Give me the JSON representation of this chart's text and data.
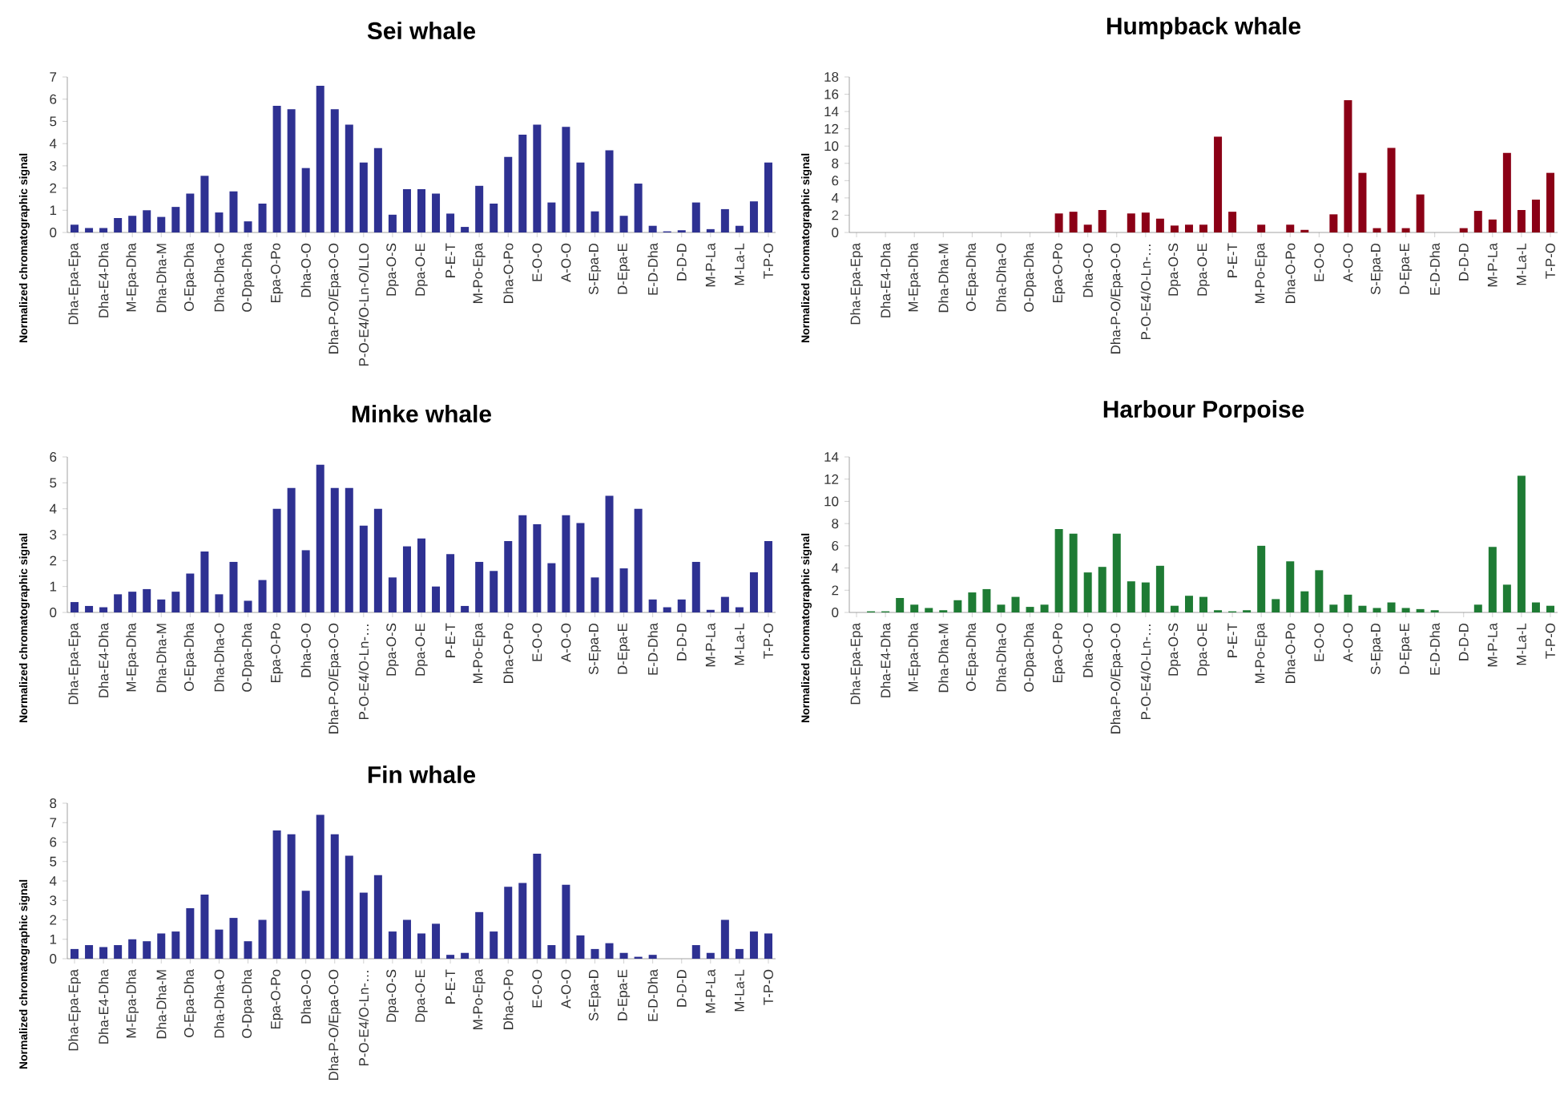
{
  "chart_data": [
    {
      "type": "bar",
      "title": "Sei whale",
      "ylabel": "Normalized chromatographic signal",
      "color": "#2e3192",
      "ylim": [
        0,
        7
      ],
      "yticks": [
        0,
        1,
        2,
        3,
        4,
        5,
        6,
        7
      ],
      "categories": [
        "Dha-Epa-Epa",
        null,
        "Dha-E4-Dha",
        null,
        "M-Epa-Dha",
        null,
        "Dha-Dha-M",
        null,
        "O-Epa-Dha",
        null,
        "Dha-Dha-O",
        null,
        "O-Dpa-Dha",
        null,
        "Epa-O-Po",
        null,
        "Dha-O-O",
        null,
        "Dha-P-O/Epa-O-O",
        null,
        "P-O-E4/O-Ln-O/LLO",
        null,
        "Dpa-O-S",
        null,
        "Dpa-O-E",
        null,
        "P-E-T",
        null,
        "M-Po-Epa",
        null,
        "Dha-O-Po",
        null,
        "E-O-O",
        null,
        "A-O-O",
        null,
        "S-Epa-D",
        null,
        "D-Epa-E",
        null,
        "E-D-Dha",
        null,
        "D-D-D",
        null,
        "M-P-La",
        null,
        "M-La-L",
        null,
        "T-P-O"
      ],
      "values": [
        0.35,
        0.2,
        0.2,
        0.65,
        0.75,
        1.0,
        0.7,
        1.15,
        1.75,
        2.55,
        0.9,
        1.85,
        0.5,
        1.3,
        5.7,
        5.55,
        2.9,
        6.6,
        5.55,
        4.85,
        3.15,
        3.8,
        0.8,
        1.95,
        1.95,
        1.75,
        0.85,
        0.25,
        2.1,
        1.3,
        3.4,
        4.4,
        4.85,
        1.35,
        4.75,
        3.15,
        0.95,
        3.7,
        0.75,
        2.2,
        0.3,
        0.05,
        0.1,
        1.35,
        0.15,
        1.05,
        0.3,
        1.4,
        3.15
      ]
    },
    {
      "type": "bar",
      "title": "Humpback whale",
      "ylabel": "Normalized chromatographic signal",
      "color": "#8b0016",
      "ylim": [
        0,
        18
      ],
      "yticks": [
        0,
        2,
        4,
        6,
        8,
        10,
        12,
        14,
        16,
        18
      ],
      "categories": [
        "Dha-Epa-Epa",
        null,
        "Dha-E4-Dha",
        null,
        "M-Epa-Dha",
        null,
        "Dha-Dha-M",
        null,
        "O-Epa-Dha",
        null,
        "Dha-Dha-O",
        null,
        "O-Dpa-Dha",
        null,
        "Epa-O-Po",
        null,
        "Dha-O-O",
        null,
        "Dha-P-O/Epa-O-O",
        null,
        "P-O-E4/O-Ln-…",
        null,
        "Dpa-O-S",
        null,
        "Dpa-O-E",
        null,
        "P-E-T",
        null,
        "M-Po-Epa",
        null,
        "Dha-O-Po",
        null,
        "E-O-O",
        null,
        "A-O-O",
        null,
        "S-Epa-D",
        null,
        "D-Epa-E",
        null,
        "E-D-Dha",
        null,
        "D-D-D",
        null,
        "M-P-La",
        null,
        "M-La-L",
        null,
        "T-P-O"
      ],
      "values": [
        0,
        0,
        0,
        0,
        0,
        0,
        0,
        0,
        0,
        0,
        0,
        0,
        0,
        0,
        2.2,
        2.4,
        0.9,
        2.6,
        0,
        2.2,
        2.3,
        1.6,
        0.8,
        0.9,
        0.9,
        11.1,
        2.4,
        0,
        0.9,
        0,
        0.9,
        0.3,
        0,
        2.1,
        15.3,
        6.9,
        0.5,
        9.8,
        0.5,
        4.4,
        0,
        0,
        0.5,
        2.5,
        1.5,
        9.2,
        2.6,
        3.8,
        6.9
      ]
    },
    {
      "type": "bar",
      "title": "Minke whale",
      "ylabel": "Normalized chromatographic signal",
      "color": "#2e3192",
      "ylim": [
        0,
        6
      ],
      "yticks": [
        0,
        1,
        2,
        3,
        4,
        5,
        6
      ],
      "categories": [
        "Dha-Epa-Epa",
        null,
        "Dha-E4-Dha",
        null,
        "M-Epa-Dha",
        null,
        "Dha-Dha-M",
        null,
        "O-Epa-Dha",
        null,
        "Dha-Dha-O",
        null,
        "O-Dpa-Dha",
        null,
        "Epa-O-Po",
        null,
        "Dha-O-O",
        null,
        "Dha-P-O/Epa-O-O",
        null,
        "P-O-E4/O-Ln-…",
        null,
        "Dpa-O-S",
        null,
        "Dpa-O-E",
        null,
        "P-E-T",
        null,
        "M-Po-Epa",
        null,
        "Dha-O-Po",
        null,
        "E-O-O",
        null,
        "A-O-O",
        null,
        "S-Epa-D",
        null,
        "D-Epa-E",
        null,
        "E-D-Dha",
        null,
        "D-D-D",
        null,
        "M-P-La",
        null,
        "M-La-L",
        null,
        "T-P-O"
      ],
      "values": [
        0.4,
        0.25,
        0.2,
        0.7,
        0.8,
        0.9,
        0.5,
        0.8,
        1.5,
        2.35,
        0.7,
        1.95,
        0.45,
        1.25,
        4.0,
        4.8,
        2.4,
        5.7,
        4.8,
        4.8,
        3.35,
        4.0,
        1.35,
        2.55,
        2.85,
        1.0,
        2.25,
        0.25,
        1.95,
        1.6,
        2.75,
        3.75,
        3.4,
        1.9,
        3.75,
        3.45,
        1.35,
        4.5,
        1.7,
        4.0,
        0.5,
        0.2,
        0.5,
        1.95,
        0.1,
        0.6,
        0.2,
        1.55,
        2.75
      ]
    },
    {
      "type": "bar",
      "title": "Harbour Porpoise",
      "ylabel": "Normalized chromatographic signal",
      "color": "#1e7b34",
      "ylim": [
        0,
        14
      ],
      "yticks": [
        0,
        2,
        4,
        6,
        8,
        10,
        12,
        14
      ],
      "categories": [
        "Dha-Epa-Epa",
        null,
        "Dha-E4-Dha",
        null,
        "M-Epa-Dha",
        null,
        "Dha-Dha-M",
        null,
        "O-Epa-Dha",
        null,
        "Dha-Dha-O",
        null,
        "O-Dpa-Dha",
        null,
        "Epa-O-Po",
        null,
        "Dha-O-O",
        null,
        "Dha-P-O/Epa-O-O",
        null,
        "P-O-E4/O-Ln-…",
        null,
        "Dpa-O-S",
        null,
        "Dpa-O-E",
        null,
        "P-E-T",
        null,
        "M-Po-Epa",
        null,
        "Dha-O-Po",
        null,
        "E-O-O",
        null,
        "A-O-O",
        null,
        "S-Epa-D",
        null,
        "D-Epa-E",
        null,
        "E-D-Dha",
        null,
        "D-D-D",
        null,
        "M-P-La",
        null,
        "M-La-L",
        null,
        "T-P-O"
      ],
      "values": [
        0,
        0.1,
        0.1,
        1.3,
        0.7,
        0.4,
        0.2,
        1.1,
        1.8,
        2.1,
        0.7,
        1.4,
        0.5,
        0.7,
        7.5,
        7.1,
        3.6,
        4.1,
        7.1,
        2.8,
        2.7,
        4.2,
        0.6,
        1.5,
        1.4,
        0.2,
        0.1,
        0.2,
        6.0,
        1.2,
        4.6,
        1.9,
        3.8,
        0.7,
        1.6,
        0.6,
        0.4,
        0.9,
        0.4,
        0.3,
        0.2,
        0,
        0,
        0.7,
        5.9,
        2.5,
        12.3,
        0.9,
        0.6
      ]
    },
    {
      "type": "bar",
      "title": "Fin whale",
      "ylabel": "Normalized chromatographic signal",
      "color": "#2e3192",
      "ylim": [
        0,
        8
      ],
      "yticks": [
        0,
        1,
        2,
        3,
        4,
        5,
        6,
        7,
        8
      ],
      "categories": [
        "Dha-Epa-Epa",
        null,
        "Dha-E4-Dha",
        null,
        "M-Epa-Dha",
        null,
        "Dha-Dha-M",
        null,
        "O-Epa-Dha",
        null,
        "Dha-Dha-O",
        null,
        "O-Dpa-Dha",
        null,
        "Epa-O-Po",
        null,
        "Dha-O-O",
        null,
        "Dha-P-O/Epa-O-O",
        null,
        "P-O-E4/O-Ln-…",
        null,
        "Dpa-O-S",
        null,
        "Dpa-O-E",
        null,
        "P-E-T",
        null,
        "M-Po-Epa",
        null,
        "Dha-O-Po",
        null,
        "E-O-O",
        null,
        "A-O-O",
        null,
        "S-Epa-D",
        null,
        "D-Epa-E",
        null,
        "E-D-Dha",
        null,
        "D-D-D",
        null,
        "M-P-La",
        null,
        "M-La-L",
        null,
        "T-P-O"
      ],
      "values": [
        0.5,
        0.7,
        0.6,
        0.7,
        1.0,
        0.9,
        1.3,
        1.4,
        2.6,
        3.3,
        1.5,
        2.1,
        0.9,
        2.0,
        6.6,
        6.4,
        3.5,
        7.4,
        6.4,
        5.3,
        3.4,
        4.3,
        1.4,
        2.0,
        1.3,
        1.8,
        0.2,
        0.3,
        2.4,
        1.4,
        3.7,
        3.9,
        5.4,
        0.7,
        3.8,
        1.2,
        0.5,
        0.8,
        0.3,
        0.1,
        0.2,
        0,
        0,
        0.7,
        0.3,
        2.0,
        0.5,
        1.4,
        1.3
      ]
    }
  ]
}
